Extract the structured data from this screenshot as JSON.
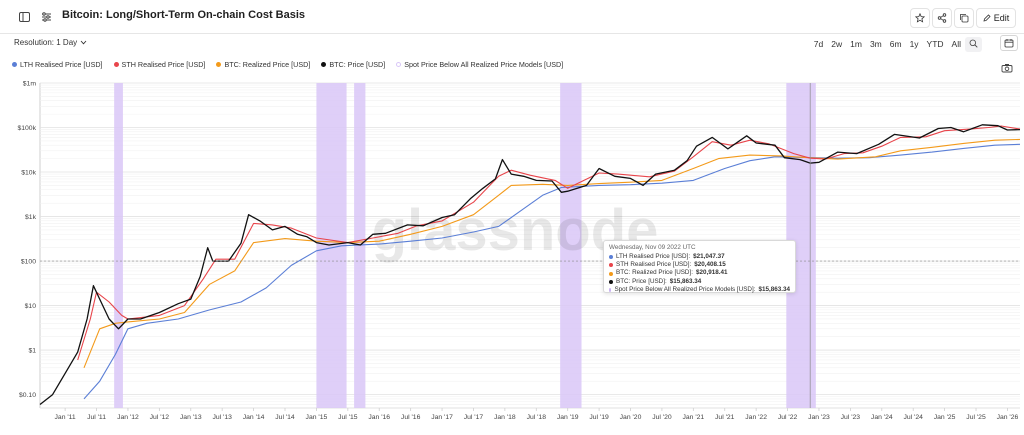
{
  "header": {
    "title": "Bitcoin: Long/Short-Term On-chain Cost Basis",
    "edit_label": "Edit"
  },
  "controls": {
    "resolution_label": "Resolution: 1 Day",
    "ranges": [
      "7d",
      "2w",
      "1m",
      "3m",
      "6m",
      "1y",
      "YTD",
      "All"
    ]
  },
  "legend": [
    {
      "label": "LTH Realised Price [USD]",
      "color": "#5b7fd6"
    },
    {
      "label": "STH Realised Price [USD]",
      "color": "#e8454b"
    },
    {
      "label": "BTC: Realized Price [USD]",
      "color": "#f39a1a"
    },
    {
      "label": "BTC: Price [USD]",
      "color": "#111111"
    },
    {
      "label": "Spot Price Below All Realized Price Models [USD]",
      "color": "#d9c7f7"
    }
  ],
  "watermark": "glassnode",
  "tooltip": {
    "date": "Wednesday, Nov 09 2022 UTC",
    "rows": [
      {
        "label": "LTH Realised Price [USD]:",
        "value": "$21,047.37",
        "color": "#5b7fd6"
      },
      {
        "label": "STH Realised Price [USD]:",
        "value": "$20,408.15",
        "color": "#e8454b"
      },
      {
        "label": "BTC: Realized Price [USD]:",
        "value": "$20,918.41",
        "color": "#f39a1a"
      },
      {
        "label": "BTC: Price [USD]:",
        "value": "$15,863.34",
        "color": "#111111"
      },
      {
        "label": "Spot Price Below All Realized Price Models [USD]:",
        "value": "$15,863.34",
        "color": "#d9c7f7"
      }
    ]
  },
  "chart_data": {
    "type": "line",
    "y_scale": "log",
    "ylim": [
      0.05,
      1000000
    ],
    "y_ticks": [
      {
        "label": "$0.10",
        "value": 0.1
      },
      {
        "label": "$1",
        "value": 1
      },
      {
        "label": "$10",
        "value": 10
      },
      {
        "label": "$100",
        "value": 100
      },
      {
        "label": "$1k",
        "value": 1000
      },
      {
        "label": "$10k",
        "value": 10000
      },
      {
        "label": "$100k",
        "value": 100000
      },
      {
        "label": "$1m",
        "value": 1000000
      }
    ],
    "xlim": [
      2010.6,
      2026.2
    ],
    "x_ticks": [
      "Jan '11",
      "Jul '11",
      "Jan '12",
      "Jul '12",
      "Jan '13",
      "Jul '13",
      "Jan '14",
      "Jul '14",
      "Jan '15",
      "Jul '15",
      "Jan '16",
      "Jul '16",
      "Jan '17",
      "Jul '17",
      "Jan '18",
      "Jul '18",
      "Jan '19",
      "Jul '19",
      "Jan '20",
      "Jul '20",
      "Jan '21",
      "Jul '21",
      "Jan '22",
      "Jul '22",
      "Jan '23",
      "Jul '23",
      "Jan '24",
      "Jul '24",
      "Jan '25",
      "Jul '25",
      "Jan '26"
    ],
    "x_tick_values": [
      2011,
      2011.5,
      2012,
      2012.5,
      2013,
      2013.5,
      2014,
      2014.5,
      2015,
      2015.5,
      2016,
      2016.5,
      2017,
      2017.5,
      2018,
      2018.5,
      2019,
      2019.5,
      2020,
      2020.5,
      2021,
      2021.5,
      2022,
      2022.5,
      2023,
      2023.5,
      2024,
      2024.5,
      2025,
      2025.5,
      2026
    ],
    "shaded_ranges": [
      [
        2011.78,
        2011.92
      ],
      [
        2015.0,
        2015.48
      ],
      [
        2015.6,
        2015.78
      ],
      [
        2018.88,
        2019.22
      ],
      [
        2022.48,
        2022.95
      ]
    ],
    "crosshair_x": 2022.86,
    "series": [
      {
        "name": "BTC: Price [USD]",
        "color": "#111111",
        "points": [
          [
            2010.6,
            0.06
          ],
          [
            2010.8,
            0.1
          ],
          [
            2011.0,
            0.3
          ],
          [
            2011.2,
            0.9
          ],
          [
            2011.35,
            5
          ],
          [
            2011.45,
            28
          ],
          [
            2011.55,
            14
          ],
          [
            2011.7,
            5
          ],
          [
            2011.85,
            3
          ],
          [
            2012.0,
            5
          ],
          [
            2012.2,
            5
          ],
          [
            2012.5,
            7
          ],
          [
            2012.8,
            11
          ],
          [
            2013.0,
            14
          ],
          [
            2013.15,
            45
          ],
          [
            2013.27,
            200
          ],
          [
            2013.35,
            100
          ],
          [
            2013.6,
            100
          ],
          [
            2013.8,
            250
          ],
          [
            2013.92,
            1100
          ],
          [
            2014.1,
            800
          ],
          [
            2014.3,
            500
          ],
          [
            2014.5,
            600
          ],
          [
            2014.7,
            400
          ],
          [
            2014.85,
            350
          ],
          [
            2015.0,
            260
          ],
          [
            2015.2,
            230
          ],
          [
            2015.5,
            260
          ],
          [
            2015.7,
            230
          ],
          [
            2015.9,
            400
          ],
          [
            2016.1,
            420
          ],
          [
            2016.45,
            650
          ],
          [
            2016.7,
            620
          ],
          [
            2017.0,
            950
          ],
          [
            2017.2,
            1100
          ],
          [
            2017.45,
            2500
          ],
          [
            2017.65,
            4300
          ],
          [
            2017.85,
            7000
          ],
          [
            2017.96,
            19000
          ],
          [
            2018.1,
            9000
          ],
          [
            2018.3,
            8000
          ],
          [
            2018.5,
            6500
          ],
          [
            2018.75,
            6300
          ],
          [
            2018.9,
            3500
          ],
          [
            2019.0,
            3700
          ],
          [
            2019.3,
            5000
          ],
          [
            2019.5,
            12000
          ],
          [
            2019.75,
            8000
          ],
          [
            2020.0,
            7200
          ],
          [
            2020.2,
            5000
          ],
          [
            2020.4,
            9000
          ],
          [
            2020.7,
            11000
          ],
          [
            2020.9,
            18000
          ],
          [
            2021.05,
            38000
          ],
          [
            2021.3,
            60000
          ],
          [
            2021.55,
            33000
          ],
          [
            2021.85,
            65000
          ],
          [
            2022.0,
            45000
          ],
          [
            2022.3,
            40000
          ],
          [
            2022.45,
            21000
          ],
          [
            2022.7,
            19000
          ],
          [
            2022.86,
            15863
          ],
          [
            2023.0,
            16500
          ],
          [
            2023.3,
            28000
          ],
          [
            2023.6,
            26000
          ],
          [
            2023.95,
            42000
          ],
          [
            2024.2,
            70000
          ],
          [
            2024.6,
            58000
          ],
          [
            2024.9,
            95000
          ],
          [
            2025.1,
            100000
          ],
          [
            2025.3,
            80000
          ],
          [
            2025.6,
            115000
          ],
          [
            2025.85,
            110000
          ],
          [
            2026.0,
            88000
          ],
          [
            2026.2,
            90000
          ]
        ]
      },
      {
        "name": "STH Realised Price [USD]",
        "color": "#e8454b",
        "points": [
          [
            2011.2,
            0.6
          ],
          [
            2011.4,
            5
          ],
          [
            2011.5,
            20
          ],
          [
            2011.7,
            12
          ],
          [
            2011.9,
            6
          ],
          [
            2012.0,
            5
          ],
          [
            2012.5,
            6
          ],
          [
            2012.9,
            10
          ],
          [
            2013.2,
            40
          ],
          [
            2013.4,
            110
          ],
          [
            2013.7,
            110
          ],
          [
            2014.0,
            700
          ],
          [
            2014.3,
            650
          ],
          [
            2014.6,
            550
          ],
          [
            2015.0,
            330
          ],
          [
            2015.5,
            260
          ],
          [
            2015.9,
            330
          ],
          [
            2016.3,
            420
          ],
          [
            2016.6,
            620
          ],
          [
            2017.0,
            800
          ],
          [
            2017.5,
            2100
          ],
          [
            2017.9,
            8000
          ],
          [
            2018.1,
            11000
          ],
          [
            2018.4,
            8500
          ],
          [
            2018.8,
            6500
          ],
          [
            2019.0,
            4300
          ],
          [
            2019.5,
            9500
          ],
          [
            2019.8,
            9000
          ],
          [
            2020.0,
            8500
          ],
          [
            2020.3,
            7800
          ],
          [
            2020.7,
            10500
          ],
          [
            2021.0,
            22000
          ],
          [
            2021.3,
            48000
          ],
          [
            2021.6,
            40000
          ],
          [
            2021.9,
            52000
          ],
          [
            2022.2,
            43000
          ],
          [
            2022.6,
            26000
          ],
          [
            2022.86,
            20408
          ],
          [
            2023.1,
            19500
          ],
          [
            2023.4,
            26000
          ],
          [
            2023.7,
            27000
          ],
          [
            2024.0,
            38000
          ],
          [
            2024.3,
            60000
          ],
          [
            2024.7,
            62000
          ],
          [
            2025.0,
            85000
          ],
          [
            2025.4,
            92000
          ],
          [
            2025.7,
            100000
          ],
          [
            2025.9,
            108000
          ],
          [
            2026.2,
            92000
          ]
        ]
      },
      {
        "name": "BTC: Realized Price [USD]",
        "color": "#f39a1a",
        "points": [
          [
            2011.3,
            0.4
          ],
          [
            2011.55,
            3
          ],
          [
            2011.8,
            4
          ],
          [
            2012.0,
            4.3
          ],
          [
            2012.5,
            5
          ],
          [
            2012.9,
            7
          ],
          [
            2013.3,
            30
          ],
          [
            2013.7,
            60
          ],
          [
            2014.0,
            260
          ],
          [
            2014.5,
            320
          ],
          [
            2015.0,
            280
          ],
          [
            2015.5,
            260
          ],
          [
            2016.0,
            280
          ],
          [
            2016.5,
            400
          ],
          [
            2017.0,
            600
          ],
          [
            2017.5,
            1100
          ],
          [
            2017.9,
            3000
          ],
          [
            2018.1,
            5000
          ],
          [
            2018.6,
            5300
          ],
          [
            2019.0,
            5000
          ],
          [
            2019.5,
            5500
          ],
          [
            2020.0,
            5900
          ],
          [
            2020.5,
            6500
          ],
          [
            2021.0,
            12000
          ],
          [
            2021.4,
            20000
          ],
          [
            2021.9,
            24000
          ],
          [
            2022.4,
            23000
          ],
          [
            2022.86,
            20918
          ],
          [
            2023.3,
            19500
          ],
          [
            2023.9,
            22000
          ],
          [
            2024.3,
            30000
          ],
          [
            2024.8,
            36000
          ],
          [
            2025.3,
            44000
          ],
          [
            2025.8,
            52000
          ],
          [
            2026.2,
            54000
          ]
        ]
      },
      {
        "name": "LTH Realised Price [USD]",
        "color": "#5b7fd6",
        "points": [
          [
            2011.3,
            0.08
          ],
          [
            2011.55,
            0.2
          ],
          [
            2011.8,
            0.8
          ],
          [
            2012.0,
            3
          ],
          [
            2012.3,
            4
          ],
          [
            2012.8,
            5
          ],
          [
            2013.3,
            8
          ],
          [
            2013.8,
            12
          ],
          [
            2014.2,
            25
          ],
          [
            2014.6,
            80
          ],
          [
            2015.0,
            170
          ],
          [
            2015.4,
            220
          ],
          [
            2016.0,
            240
          ],
          [
            2016.5,
            280
          ],
          [
            2017.0,
            330
          ],
          [
            2017.5,
            450
          ],
          [
            2017.9,
            600
          ],
          [
            2018.3,
            1500
          ],
          [
            2018.6,
            3000
          ],
          [
            2018.9,
            4500
          ],
          [
            2019.5,
            5000
          ],
          [
            2020.0,
            5200
          ],
          [
            2020.5,
            5600
          ],
          [
            2021.0,
            6500
          ],
          [
            2021.5,
            12000
          ],
          [
            2021.9,
            18000
          ],
          [
            2022.3,
            22000
          ],
          [
            2022.86,
            21047
          ],
          [
            2023.3,
            20500
          ],
          [
            2023.8,
            21000
          ],
          [
            2024.3,
            24000
          ],
          [
            2024.8,
            28000
          ],
          [
            2025.3,
            34000
          ],
          [
            2025.8,
            40000
          ],
          [
            2026.2,
            42000
          ]
        ]
      }
    ]
  }
}
